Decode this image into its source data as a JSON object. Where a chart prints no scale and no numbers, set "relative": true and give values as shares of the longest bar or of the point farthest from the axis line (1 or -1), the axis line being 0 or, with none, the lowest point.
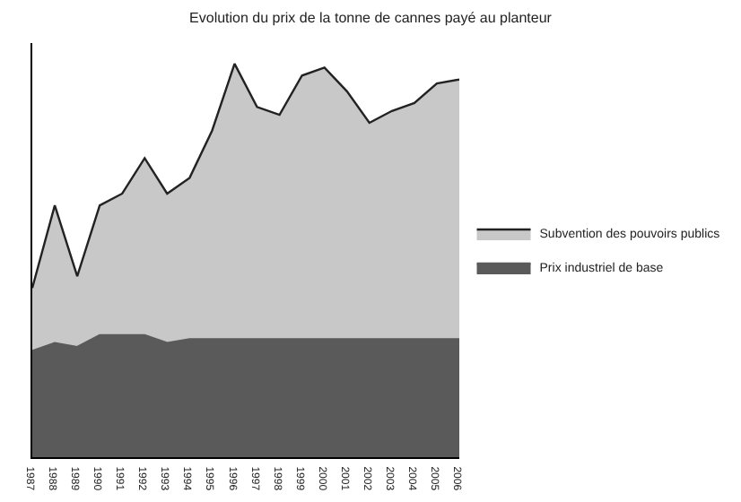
{
  "chart_data": {
    "type": "area",
    "stacked": true,
    "relative": true,
    "title": "Evolution du prix de la tonne de cannes payé au planteur",
    "categories": [
      "1987",
      "1988",
      "1989",
      "1990",
      "1991",
      "1992",
      "1993",
      "1994",
      "1995",
      "1996",
      "1997",
      "1998",
      "1999",
      "2000",
      "2001",
      "2002",
      "2003",
      "2004",
      "2005",
      "2006"
    ],
    "series": [
      {
        "name": "Prix industriel de base",
        "color": "#5a5a5a",
        "values": [
          0.27,
          0.29,
          0.28,
          0.31,
          0.31,
          0.31,
          0.29,
          0.3,
          0.3,
          0.3,
          0.3,
          0.3,
          0.3,
          0.3,
          0.3,
          0.3,
          0.3,
          0.3,
          0.3,
          0.3
        ]
      },
      {
        "name": "Subvention des pouvoirs publics",
        "color": "#c8c8c8",
        "values": [
          0.16,
          0.35,
          0.18,
          0.33,
          0.36,
          0.45,
          0.38,
          0.41,
          0.53,
          0.7,
          0.59,
          0.57,
          0.67,
          0.69,
          0.63,
          0.55,
          0.58,
          0.6,
          0.65,
          0.66
        ]
      }
    ],
    "legend": "right"
  }
}
